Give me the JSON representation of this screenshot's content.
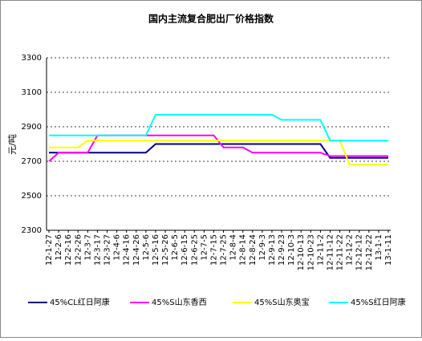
{
  "chart_data": {
    "type": "line",
    "title": "国内主流复合肥出厂价格指数",
    "y_label": "元/吨",
    "categories": [
      "12-1-27",
      "12-2-6",
      "12-2-16",
      "12-2-26",
      "12-3-7",
      "12-3-17",
      "12-3-27",
      "12-4-6",
      "12-4-16",
      "12-4-26",
      "12-5-6",
      "12-5-16",
      "12-5-26",
      "12-6-5",
      "12-6-15",
      "12-6-25",
      "12-7-5",
      "12-7-15",
      "12-7-25",
      "12-8-4",
      "12-8-14",
      "12-8-24",
      "12-9-3",
      "12-9-13",
      "12-9-23",
      "12-10-3",
      "12-10-13",
      "12-10-23",
      "12-11-2",
      "12-11-12",
      "12-11-22",
      "12-12-2",
      "12-12-12",
      "12-12-22",
      "13-1-1",
      "13-1-11"
    ],
    "series": [
      {
        "name": "45%CL红日阿康",
        "color": "#000080",
        "values": [
          2750,
          2750,
          2750,
          2750,
          2750,
          2750,
          2750,
          2750,
          2750,
          2750,
          2750,
          2800,
          2800,
          2800,
          2800,
          2800,
          2800,
          2800,
          2800,
          2800,
          2800,
          2800,
          2800,
          2800,
          2800,
          2800,
          2800,
          2800,
          2800,
          2720,
          2720,
          2720,
          2720,
          2720,
          2720,
          2720
        ]
      },
      {
        "name": "45%S山东香西",
        "color": "#ff00ff",
        "values": [
          2700,
          2750,
          2750,
          2750,
          2750,
          2850,
          2850,
          2850,
          2850,
          2850,
          2850,
          2850,
          2850,
          2850,
          2850,
          2850,
          2850,
          2850,
          2780,
          2780,
          2780,
          2750,
          2750,
          2750,
          2750,
          2750,
          2750,
          2750,
          2750,
          2730,
          2730,
          2730,
          2730,
          2730,
          2730,
          2730
        ]
      },
      {
        "name": "45%S山东奥宝",
        "color": "#ffff00",
        "values": [
          2780,
          2780,
          2780,
          2780,
          2820,
          2820,
          2820,
          2820,
          2820,
          2820,
          2820,
          2820,
          2820,
          2820,
          2820,
          2820,
          2820,
          2820,
          2820,
          2820,
          2820,
          2820,
          2820,
          2820,
          2820,
          2820,
          2820,
          2820,
          2820,
          2820,
          2820,
          2680,
          2680,
          2680,
          2680,
          2680
        ]
      },
      {
        "name": "45%S红日阿康",
        "color": "#00ffff",
        "values": [
          2850,
          2850,
          2850,
          2850,
          2850,
          2850,
          2850,
          2850,
          2850,
          2850,
          2850,
          2970,
          2970,
          2970,
          2970,
          2970,
          2970,
          2970,
          2970,
          2970,
          2970,
          2970,
          2970,
          2970,
          2940,
          2940,
          2940,
          2940,
          2940,
          2820,
          2820,
          2820,
          2820,
          2820,
          2820,
          2820
        ]
      }
    ],
    "ylim": [
      2300,
      3300
    ],
    "yticks": [
      2300,
      2500,
      2700,
      2900,
      3100,
      3300
    ],
    "grid": true
  }
}
